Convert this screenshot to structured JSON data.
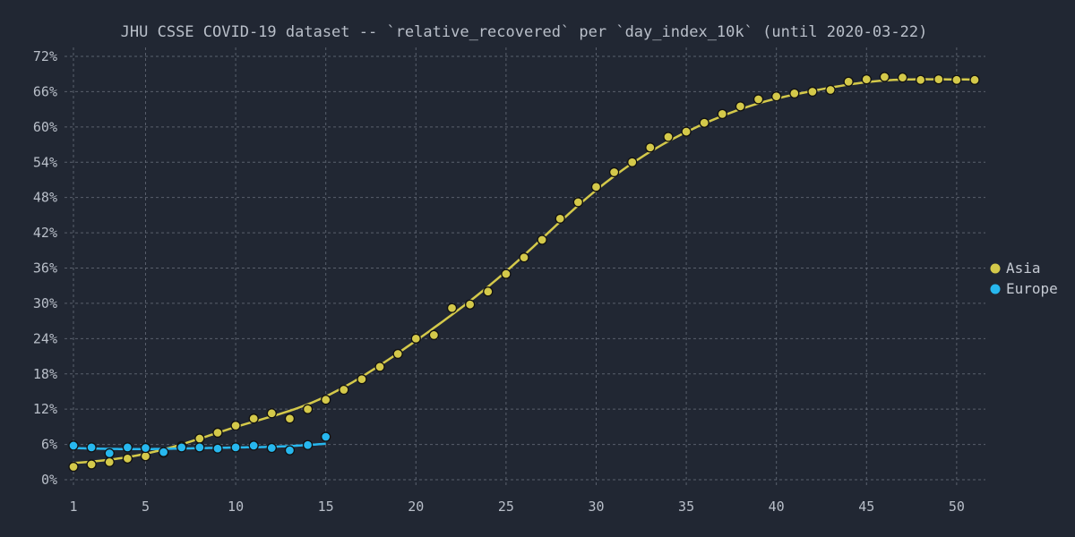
{
  "chart_data": {
    "type": "scatter",
    "title": "JHU CSSE COVID-19 dataset -- `relative_recovered` per `day_index_10k` (until 2020-03-22)",
    "xlabel": "",
    "ylabel": "",
    "xlim": [
      1,
      51
    ],
    "ylim": [
      0,
      0.72
    ],
    "x_ticks": [
      1,
      5,
      10,
      15,
      20,
      25,
      30,
      35,
      40,
      45,
      50
    ],
    "y_ticks": [
      0,
      0.06,
      0.12,
      0.18,
      0.24,
      0.3,
      0.36,
      0.42,
      0.48,
      0.54,
      0.6,
      0.66,
      0.72
    ],
    "y_tick_labels": [
      "0%",
      "6%",
      "12%",
      "18%",
      "24%",
      "30%",
      "36%",
      "42%",
      "48%",
      "54%",
      "60%",
      "66%",
      "72%"
    ],
    "grid": true,
    "legend_position": "right",
    "trend_line": "smooth fit per series",
    "series": [
      {
        "name": "Asia",
        "color": "#d4c94a",
        "x": [
          1,
          2,
          3,
          4,
          5,
          6,
          7,
          8,
          9,
          10,
          11,
          12,
          13,
          14,
          15,
          16,
          17,
          18,
          19,
          20,
          21,
          22,
          23,
          24,
          25,
          26,
          27,
          28,
          29,
          30,
          31,
          32,
          33,
          34,
          35,
          36,
          37,
          38,
          39,
          40,
          41,
          42,
          43,
          44,
          45,
          46,
          47,
          48,
          49,
          50,
          51
        ],
        "y": [
          0.022,
          0.026,
          0.03,
          0.036,
          0.04,
          0.046,
          0.057,
          0.07,
          0.08,
          0.092,
          0.104,
          0.113,
          0.104,
          0.12,
          0.136,
          0.153,
          0.171,
          0.192,
          0.214,
          0.24,
          0.246,
          0.292,
          0.298,
          0.32,
          0.35,
          0.378,
          0.408,
          0.444,
          0.472,
          0.498,
          0.523,
          0.54,
          0.565,
          0.583,
          0.592,
          0.607,
          0.622,
          0.635,
          0.647,
          0.652,
          0.657,
          0.66,
          0.663,
          0.677,
          0.681,
          0.685,
          0.684,
          0.68,
          0.681,
          0.68,
          0.68
        ]
      },
      {
        "name": "Europe",
        "color": "#27b7ee",
        "x": [
          1,
          2,
          3,
          4,
          5,
          6,
          7,
          8,
          9,
          10,
          11,
          12,
          13,
          14,
          15
        ],
        "y": [
          0.058,
          0.055,
          0.045,
          0.055,
          0.054,
          0.047,
          0.055,
          0.055,
          0.053,
          0.055,
          0.058,
          0.054,
          0.05,
          0.059,
          0.073
        ]
      }
    ]
  }
}
